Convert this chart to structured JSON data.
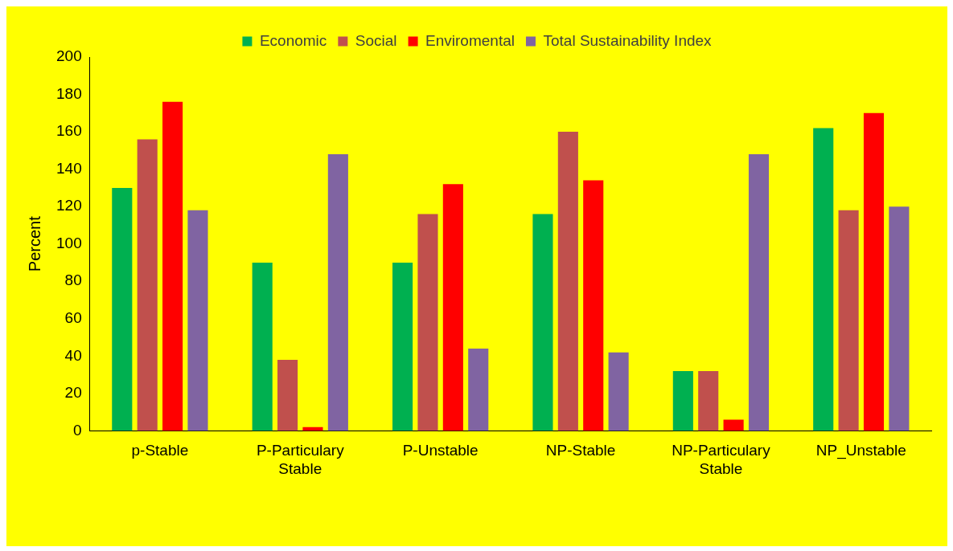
{
  "chart_data": {
    "type": "bar",
    "ylabel": "Percent",
    "categories": [
      "p-Stable",
      "P-Particulary Stable",
      "P-Unstable",
      "NP-Stable",
      "NP-Particulary Stable",
      "NP_Unstable"
    ],
    "series": [
      {
        "name": "Economic",
        "color": "#00b050",
        "values": [
          130,
          90,
          90,
          116,
          32,
          162
        ]
      },
      {
        "name": "Social",
        "color": "#c0504d",
        "values": [
          156,
          38,
          116,
          160,
          32,
          118
        ]
      },
      {
        "name": "Enviromental",
        "color": "#ff0000",
        "values": [
          176,
          2,
          132,
          134,
          6,
          170
        ]
      },
      {
        "name": "Total Sustainability Index",
        "color": "#8064a2",
        "values": [
          118,
          148,
          44,
          42,
          148,
          120
        ]
      }
    ],
    "ylim": [
      0,
      200
    ],
    "yticks": [
      0,
      20,
      40,
      60,
      80,
      100,
      120,
      140,
      160,
      180,
      200
    ],
    "grid": false,
    "legend": "top"
  }
}
